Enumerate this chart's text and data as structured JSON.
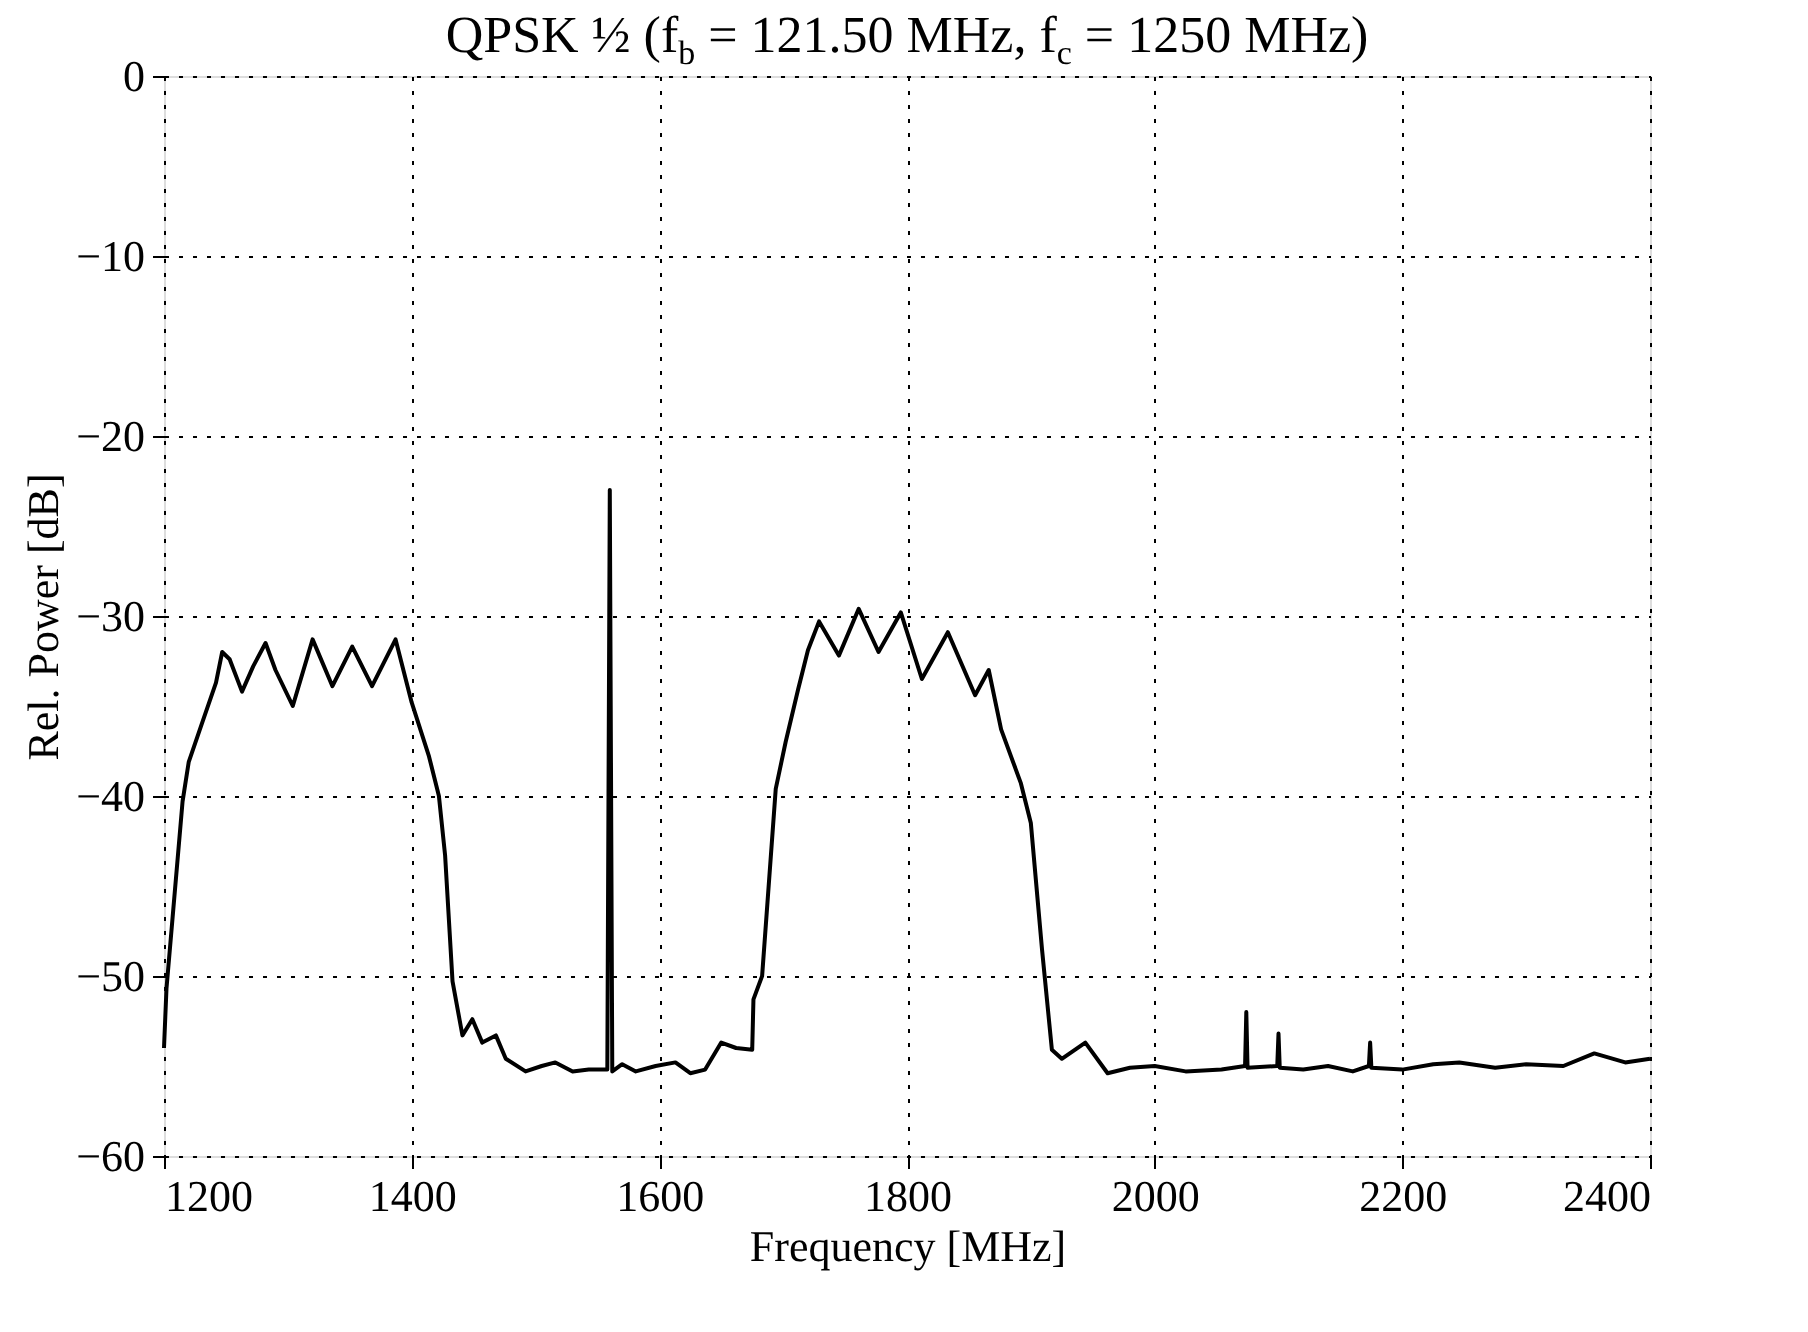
{
  "chart_data": {
    "type": "line",
    "title": "QPSK ½ (f$_{b}$ = 121.50 MHz, f$_{c}$ = 1250 MHz)",
    "xlabel": "Frequency [MHz]",
    "ylabel": "Rel. Power [dB]",
    "xlim": [
      1200,
      2400
    ],
    "xticks": [
      1200,
      1400,
      1600,
      1800,
      2000,
      2200,
      2400
    ],
    "ylim": [
      -60,
      0
    ],
    "yticks": [
      -60,
      -50,
      -40,
      -30,
      -20,
      -10,
      0
    ],
    "grid": true,
    "line_style": "solid",
    "marker": "none",
    "series": [
      {
        "color": "#000000",
        "x": [
          1200,
          1202,
          1207,
          1215,
          1220,
          1231,
          1242,
          1247,
          1253,
          1263,
          1272,
          1282,
          1290,
          1304,
          1320,
          1336,
          1352,
          1368,
          1387,
          1400,
          1414,
          1422,
          1427,
          1433,
          1441,
          1449,
          1457,
          1468,
          1476,
          1492,
          1505,
          1516,
          1530,
          1543,
          1558,
          1560,
          1562,
          1570,
          1581,
          1597,
          1613,
          1625,
          1637,
          1650,
          1662,
          1675,
          1676,
          1683,
          1694,
          1702,
          1712,
          1720,
          1729,
          1745,
          1761,
          1777,
          1795,
          1812,
          1833,
          1855,
          1866,
          1876,
          1892,
          1900,
          1909,
          1917,
          1925,
          1944,
          1962,
          1980,
          2000,
          2025,
          2054,
          2073,
          2074,
          2075,
          2099,
          2100,
          2101,
          2120,
          2140,
          2160,
          2173,
          2174,
          2175,
          2200,
          2225,
          2246,
          2275,
          2300,
          2330,
          2355,
          2380,
          2400
        ],
        "values": [
          -54,
          -50.7,
          -46.7,
          -40.3,
          -38.1,
          -35.9,
          -33.7,
          -32.0,
          -32.4,
          -34.2,
          -32.8,
          -31.5,
          -33.0,
          -35.0,
          -31.3,
          -33.9,
          -31.7,
          -33.9,
          -31.3,
          -34.8,
          -37.8,
          -40,
          -43.3,
          -50.3,
          -53.3,
          -52.4,
          -53.7,
          -53.3,
          -54.6,
          -55.3,
          -55.0,
          -54.8,
          -55.3,
          -55.2,
          -55.2,
          -23.0,
          -55.3,
          -54.9,
          -55.3,
          -55.0,
          -54.8,
          -55.4,
          -55.2,
          -53.7,
          -54.0,
          -54.1,
          -51.3,
          -50.0,
          -39.6,
          -37.0,
          -34.1,
          -31.9,
          -30.3,
          -32.2,
          -29.6,
          -32.0,
          -29.8,
          -33.5,
          -30.9,
          -34.4,
          -33.0,
          -36.3,
          -39.3,
          -41.5,
          -48.5,
          -54.1,
          -54.6,
          -53.7,
          -55.4,
          -55.1,
          -55.0,
          -55.3,
          -55.2,
          -55.0,
          -52.0,
          -55.1,
          -55.0,
          -53.2,
          -55.1,
          -55.2,
          -55.0,
          -55.3,
          -55.0,
          -53.7,
          -55.1,
          -55.2,
          -54.9,
          -54.8,
          -55.1,
          -54.9,
          -55.0,
          -54.3,
          -54.8,
          -54.6
        ]
      }
    ]
  }
}
